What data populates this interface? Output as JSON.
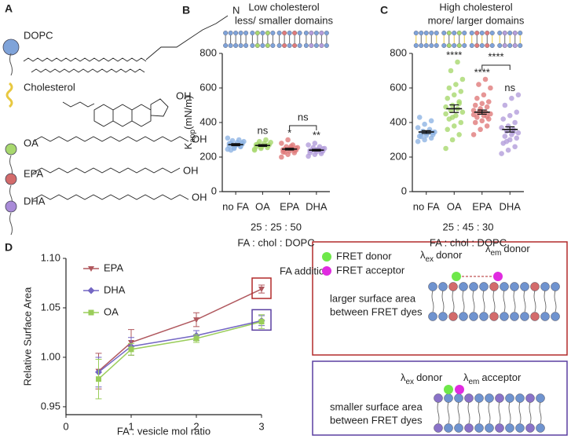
{
  "panel_labels": [
    "A",
    "B",
    "C",
    "D"
  ],
  "panel_a": {
    "lipids": [
      "DOPC",
      "Cholesterol",
      "OA",
      "EPA",
      "DHA"
    ],
    "hydroxyl": "OH",
    "amine": "N"
  },
  "chart_data": [
    {
      "type": "dot",
      "title": "Low cholesterol",
      "subtitle": "less/ smaller domains",
      "ylabel": "K",
      "ylabel_sub": "app",
      "ylabel_unit": "(mN/m)",
      "ylim": [
        0,
        800
      ],
      "yticks": [
        0,
        200,
        400,
        600,
        800
      ],
      "categories": [
        "no FA",
        "OA",
        "EPA",
        "DHA"
      ],
      "ratio": "25 : 25 : 50",
      "xlabel": "FA : chol : DOPC",
      "groups": [
        {
          "color": "#8fb4e3",
          "points": [
            245,
            255,
            260,
            265,
            270,
            275,
            280,
            285,
            290,
            295,
            300,
            310,
            250,
            262,
            278,
            268,
            283,
            240
          ],
          "mean": 272,
          "sem": 6
        },
        {
          "color": "#a8d86e",
          "points": [
            240,
            250,
            255,
            260,
            265,
            270,
            275,
            280,
            285,
            290,
            300,
            245,
            258,
            268,
            272
          ],
          "mean": 267,
          "sem": 5,
          "sig": "ns"
        },
        {
          "color": "#e07b7b",
          "points": [
            200,
            215,
            225,
            230,
            235,
            240,
            245,
            250,
            255,
            260,
            270,
            280,
            300,
            238,
            243,
            248,
            252,
            228,
            262
          ],
          "mean": 246,
          "sem": 5,
          "sig": "*"
        },
        {
          "color": "#b39ddb",
          "points": [
            205,
            215,
            220,
            225,
            230,
            235,
            240,
            245,
            250,
            255,
            260,
            270,
            280,
            232,
            238,
            242,
            248
          ],
          "mean": 240,
          "sem": 5,
          "sig": "**"
        }
      ],
      "bracket_label": "ns"
    },
    {
      "type": "dot",
      "title": "High cholesterol",
      "subtitle": "more/ larger domains",
      "ylim": [
        0,
        800
      ],
      "yticks": [
        0,
        200,
        400,
        600,
        800
      ],
      "categories": [
        "no FA",
        "OA",
        "EPA",
        "DHA"
      ],
      "ratio": "25 : 45 : 30",
      "xlabel": "FA : chol : DOPC",
      "groups": [
        {
          "color": "#8fb4e3",
          "points": [
            290,
            300,
            310,
            320,
            325,
            330,
            335,
            340,
            345,
            350,
            360,
            370,
            390,
            410,
            430,
            338,
            342,
            318
          ],
          "mean": 345,
          "sem": 8
        },
        {
          "color": "#a8d86e",
          "points": [
            250,
            300,
            330,
            360,
            380,
            400,
            420,
            440,
            460,
            470,
            480,
            490,
            500,
            520,
            540,
            560,
            580,
            600,
            620,
            650,
            700,
            750,
            450,
            430,
            510
          ],
          "mean": 480,
          "sem": 22,
          "sig": "****"
        },
        {
          "color": "#e07b7b",
          "points": [
            330,
            360,
            380,
            400,
            410,
            420,
            430,
            440,
            450,
            455,
            460,
            470,
            480,
            490,
            500,
            510,
            520,
            540,
            560,
            600,
            620,
            650,
            445,
            465,
            435
          ],
          "mean": 460,
          "sem": 12,
          "sig": "****"
        },
        {
          "color": "#b39ddb",
          "points": [
            220,
            240,
            260,
            280,
            300,
            310,
            320,
            330,
            340,
            350,
            360,
            370,
            380,
            400,
            420,
            440,
            460,
            500,
            540,
            560,
            290,
            345
          ],
          "mean": 360,
          "sem": 15,
          "sig": "ns"
        }
      ],
      "bracket_label": "****"
    },
    {
      "type": "line",
      "xlabel": "FA : vesicle mol ratio",
      "ylabel": "Relative Surface Area",
      "x": [
        0.5,
        1,
        2,
        3
      ],
      "xlim": [
        0,
        3
      ],
      "xticks": [
        0,
        1,
        2,
        3
      ],
      "ylim": [
        0.942,
        1.1
      ],
      "yticks": [
        0.95,
        {
          "value": 1.0,
          "label": "1.00"
        },
        1.05,
        {
          "value": 1.1,
          "label": "1.10"
        }
      ],
      "annotation": "FA addition",
      "series": [
        {
          "name": "EPA",
          "color": "#b0585e",
          "marker": "triangle",
          "values": [
            0.986,
            1.015,
            1.038,
            1.069
          ],
          "errors": [
            0.018,
            0.013,
            0.007,
            0.004
          ]
        },
        {
          "name": "DHA",
          "color": "#7467c4",
          "marker": "diamond",
          "values": [
            0.985,
            1.011,
            1.022,
            1.037
          ],
          "errors": [
            0.015,
            0.009,
            0.005,
            0.005
          ]
        },
        {
          "name": "OA",
          "color": "#9acd5a",
          "marker": "square",
          "values": [
            0.978,
            1.008,
            1.019,
            1.036
          ],
          "errors": [
            0.02,
            0.006,
            0.004,
            0.007
          ]
        }
      ]
    }
  ],
  "fret": {
    "donor_legend": "FRET donor",
    "acceptor_legend": "FRET acceptor",
    "symbol": "λ",
    "ex": "ex",
    "em": "em",
    "donor": "donor",
    "acceptor": "acceptor",
    "large_lines": [
      "larger surface area",
      "between FRET dyes"
    ],
    "small_lines": [
      "smaller surface area",
      "between FRET dyes"
    ]
  }
}
